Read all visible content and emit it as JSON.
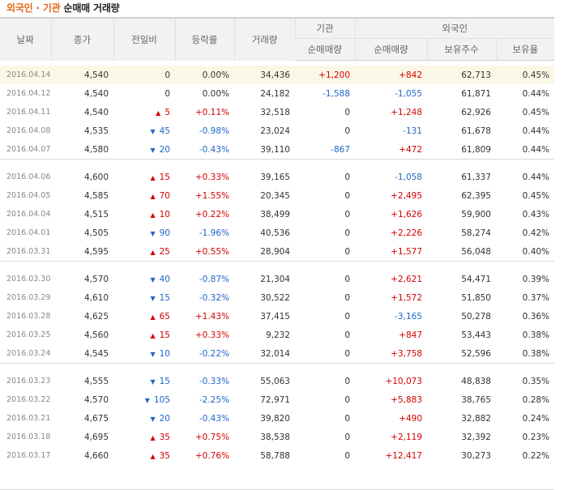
{
  "title": {
    "part1": "외국인 · 기관",
    "part2": "순매매 거래량"
  },
  "headers": {
    "date": "날짜",
    "close": "종가",
    "change": "전일비",
    "rate": "등락률",
    "volume": "거래량",
    "inst": "기관",
    "inst_net": "순매매량",
    "foreign": "외국인",
    "foreign_net": "순매매량",
    "holdings": "보유주수",
    "ratio": "보유율"
  },
  "colors": {
    "up": "#d60000",
    "down": "#1f66c7",
    "title_accent": "#e2671a",
    "highlight_row": "#fbf7e7"
  },
  "groups": [
    [
      {
        "date": "2016.04.14",
        "close": "4,540",
        "dir": "none",
        "change": "0",
        "rate": "0.00%",
        "volume": "34,436",
        "inst": "+1,200",
        "frgn": "+842",
        "hold": "62,713",
        "ratio": "0.45%"
      },
      {
        "date": "2016.04.12",
        "close": "4,540",
        "dir": "none",
        "change": "0",
        "rate": "0.00%",
        "volume": "24,182",
        "inst": "-1,588",
        "frgn": "-1,055",
        "hold": "61,871",
        "ratio": "0.44%"
      },
      {
        "date": "2016.04.11",
        "close": "4,540",
        "dir": "up",
        "change": "5",
        "rate": "+0.11%",
        "volume": "32,518",
        "inst": "0",
        "frgn": "+1,248",
        "hold": "62,926",
        "ratio": "0.45%"
      },
      {
        "date": "2016.04.08",
        "close": "4,535",
        "dir": "down",
        "change": "45",
        "rate": "-0.98%",
        "volume": "23,024",
        "inst": "0",
        "frgn": "-131",
        "hold": "61,678",
        "ratio": "0.44%"
      },
      {
        "date": "2016.04.07",
        "close": "4,580",
        "dir": "down",
        "change": "20",
        "rate": "-0.43%",
        "volume": "39,110",
        "inst": "-867",
        "frgn": "+472",
        "hold": "61,809",
        "ratio": "0.44%"
      }
    ],
    [
      {
        "date": "2016.04.06",
        "close": "4,600",
        "dir": "up",
        "change": "15",
        "rate": "+0.33%",
        "volume": "39,165",
        "inst": "0",
        "frgn": "-1,058",
        "hold": "61,337",
        "ratio": "0.44%"
      },
      {
        "date": "2016.04.05",
        "close": "4,585",
        "dir": "up",
        "change": "70",
        "rate": "+1.55%",
        "volume": "20,345",
        "inst": "0",
        "frgn": "+2,495",
        "hold": "62,395",
        "ratio": "0.45%"
      },
      {
        "date": "2016.04.04",
        "close": "4,515",
        "dir": "up",
        "change": "10",
        "rate": "+0.22%",
        "volume": "38,499",
        "inst": "0",
        "frgn": "+1,626",
        "hold": "59,900",
        "ratio": "0.43%"
      },
      {
        "date": "2016.04.01",
        "close": "4,505",
        "dir": "down",
        "change": "90",
        "rate": "-1.96%",
        "volume": "40,536",
        "inst": "0",
        "frgn": "+2,226",
        "hold": "58,274",
        "ratio": "0.42%"
      },
      {
        "date": "2016.03.31",
        "close": "4,595",
        "dir": "up",
        "change": "25",
        "rate": "+0.55%",
        "volume": "28,904",
        "inst": "0",
        "frgn": "+1,577",
        "hold": "56,048",
        "ratio": "0.40%"
      }
    ],
    [
      {
        "date": "2016.03.30",
        "close": "4,570",
        "dir": "down",
        "change": "40",
        "rate": "-0.87%",
        "volume": "21,304",
        "inst": "0",
        "frgn": "+2,621",
        "hold": "54,471",
        "ratio": "0.39%"
      },
      {
        "date": "2016.03.29",
        "close": "4,610",
        "dir": "down",
        "change": "15",
        "rate": "-0.32%",
        "volume": "30,522",
        "inst": "0",
        "frgn": "+1,572",
        "hold": "51,850",
        "ratio": "0.37%"
      },
      {
        "date": "2016.03.28",
        "close": "4,625",
        "dir": "up",
        "change": "65",
        "rate": "+1.43%",
        "volume": "37,415",
        "inst": "0",
        "frgn": "-3,165",
        "hold": "50,278",
        "ratio": "0.36%"
      },
      {
        "date": "2016.03.25",
        "close": "4,560",
        "dir": "up",
        "change": "15",
        "rate": "+0.33%",
        "volume": "9,232",
        "inst": "0",
        "frgn": "+847",
        "hold": "53,443",
        "ratio": "0.38%"
      },
      {
        "date": "2016.03.24",
        "close": "4,545",
        "dir": "down",
        "change": "10",
        "rate": "-0.22%",
        "volume": "32,014",
        "inst": "0",
        "frgn": "+3,758",
        "hold": "52,596",
        "ratio": "0.38%"
      }
    ],
    [
      {
        "date": "2016.03.23",
        "close": "4,555",
        "dir": "down",
        "change": "15",
        "rate": "-0.33%",
        "volume": "55,063",
        "inst": "0",
        "frgn": "+10,073",
        "hold": "48,838",
        "ratio": "0.35%"
      },
      {
        "date": "2016.03.22",
        "close": "4,570",
        "dir": "down",
        "change": "105",
        "rate": "-2.25%",
        "volume": "72,971",
        "inst": "0",
        "frgn": "+5,883",
        "hold": "38,765",
        "ratio": "0.28%"
      },
      {
        "date": "2016.03.21",
        "close": "4,675",
        "dir": "down",
        "change": "20",
        "rate": "-0.43%",
        "volume": "39,820",
        "inst": "0",
        "frgn": "+490",
        "hold": "32,882",
        "ratio": "0.24%"
      },
      {
        "date": "2016.03.18",
        "close": "4,695",
        "dir": "up",
        "change": "35",
        "rate": "+0.75%",
        "volume": "38,538",
        "inst": "0",
        "frgn": "+2,119",
        "hold": "32,392",
        "ratio": "0.23%"
      },
      {
        "date": "2016.03.17",
        "close": "4,660",
        "dir": "up",
        "change": "35",
        "rate": "+0.76%",
        "volume": "58,788",
        "inst": "0",
        "frgn": "+12,417",
        "hold": "30,273",
        "ratio": "0.22%"
      }
    ]
  ]
}
